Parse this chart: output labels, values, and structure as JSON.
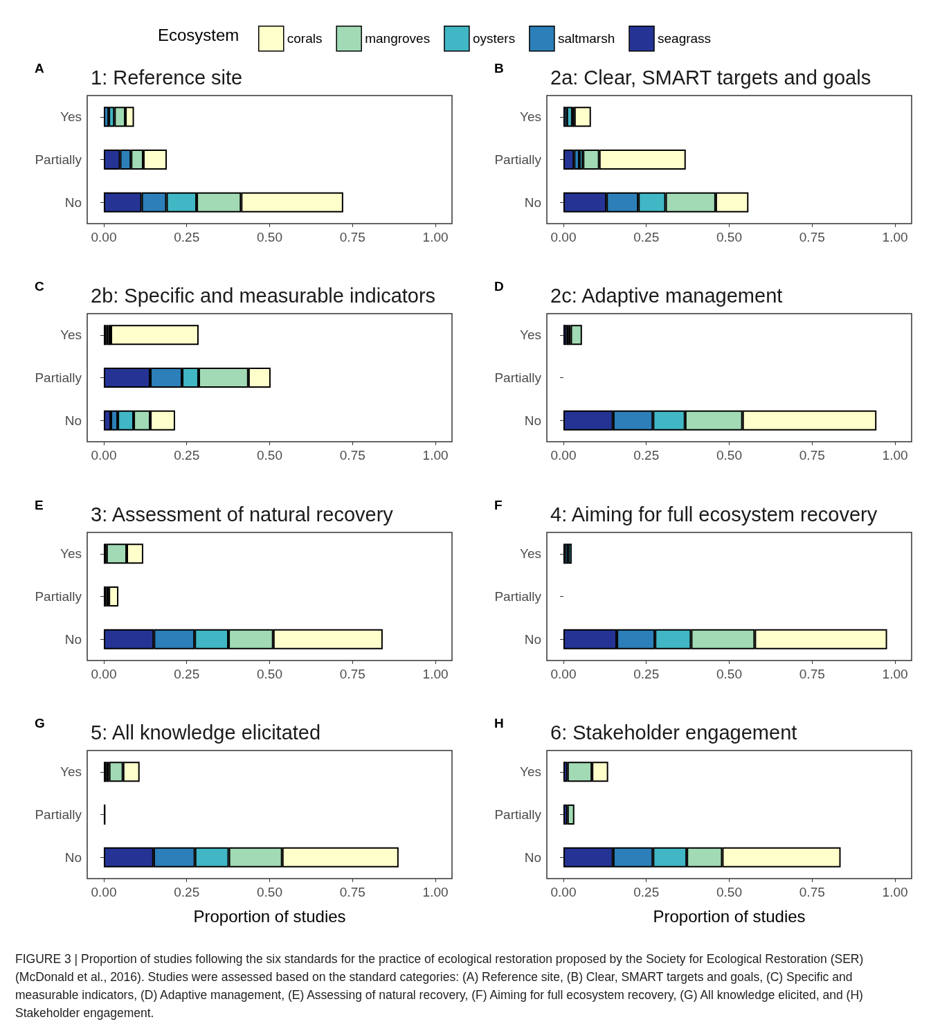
{
  "chart_data": [
    {
      "type": "bar",
      "orientation": "horizontal",
      "stacked": true,
      "title": "1: Reference site",
      "annotations": [
        "A"
      ],
      "legend": "top",
      "legend_title": "Ecosystem",
      "categories": [
        "Yes",
        "Partially",
        "No"
      ],
      "xlim": [
        -0.05,
        1.05
      ],
      "xticks": [
        {
          "value": 0,
          "label": "0.00"
        },
        {
          "value": 0.25,
          "label": "0.25"
        },
        {
          "value": 0.5,
          "label": "0.50"
        },
        {
          "value": 0.75,
          "label": "0.75"
        },
        {
          "value": 1,
          "label": "1.00"
        }
      ],
      "series": [
        {
          "name": "seagrass",
          "color": "#253494",
          "values": [
            null,
            0.049,
            0.114
          ]
        },
        {
          "name": "saltmarsh",
          "color": "#2c7fb8",
          "values": [
            0.015,
            0.033,
            0.075
          ]
        },
        {
          "name": "oysters",
          "color": "#41b6c4",
          "values": [
            0.017,
            null,
            0.091
          ]
        },
        {
          "name": "mangroves",
          "color": "#a1dab4",
          "values": [
            0.033,
            0.037,
            0.134
          ]
        },
        {
          "name": "corals",
          "color": "#ffffcc",
          "values": [
            0.026,
            0.071,
            0.308
          ]
        }
      ]
    },
    {
      "type": "bar",
      "orientation": "horizontal",
      "stacked": true,
      "title": "2a: Clear, SMART targets and goals",
      "annotations": [
        "B"
      ],
      "categories": [
        "Yes",
        "Partially",
        "No"
      ],
      "xlim": [
        -0.05,
        1.05
      ],
      "xticks": [
        {
          "value": 0,
          "label": "0.00"
        },
        {
          "value": 0.25,
          "label": "0.25"
        },
        {
          "value": 0.5,
          "label": "0.50"
        },
        {
          "value": 0.75,
          "label": "0.75"
        },
        {
          "value": 1,
          "label": "1.00"
        }
      ],
      "series": [
        {
          "color": "#253494",
          "values": [
            null,
            0.032,
            0.13
          ]
        },
        {
          "color": "#2c7fb8",
          "values": [
            0.01,
            0.016,
            0.096
          ]
        },
        {
          "color": "#41b6c4",
          "values": [
            0.017,
            0.011,
            0.082
          ]
        },
        {
          "color": "#a1dab4",
          "values": [
            0.006,
            0.049,
            0.151
          ]
        },
        {
          "color": "#ffffcc",
          "values": [
            0.05,
            0.261,
            0.099
          ]
        }
      ]
    },
    {
      "type": "bar",
      "orientation": "horizontal",
      "stacked": true,
      "title": "2b: Specific and measurable indicators",
      "annotations": [
        "C"
      ],
      "categories": [
        "Yes",
        "Partially",
        "No"
      ],
      "xlim": [
        -0.05,
        1.05
      ],
      "xticks": [
        {
          "value": 0,
          "label": "0.00"
        },
        {
          "value": 0.25,
          "label": "0.25"
        },
        {
          "value": 0.5,
          "label": "0.50"
        },
        {
          "value": 0.75,
          "label": "0.75"
        },
        {
          "value": 1,
          "label": "1.00"
        }
      ],
      "series": [
        {
          "color": "#253494",
          "values": [
            0.007,
            0.14,
            0.021
          ]
        },
        {
          "color": "#2c7fb8",
          "values": [
            null,
            0.096,
            0.021
          ]
        },
        {
          "color": "#41b6c4",
          "values": [
            0.007,
            0.05,
            0.048
          ]
        },
        {
          "color": "#a1dab4",
          "values": [
            0.007,
            0.15,
            0.05
          ]
        },
        {
          "color": "#ffffcc",
          "values": [
            0.265,
            0.067,
            0.075
          ]
        }
      ]
    },
    {
      "type": "bar",
      "orientation": "horizontal",
      "stacked": true,
      "title": "2c: Adaptive management",
      "annotations": [
        "D"
      ],
      "categories": [
        "Yes",
        "Partially",
        "No"
      ],
      "xlim": [
        -0.05,
        1.05
      ],
      "xticks": [
        {
          "value": 0,
          "label": "0.00"
        },
        {
          "value": 0.25,
          "label": "0.25"
        },
        {
          "value": 0.5,
          "label": "0.50"
        },
        {
          "value": 0.75,
          "label": "0.75"
        },
        {
          "value": 1,
          "label": "1.00"
        }
      ],
      "series": [
        {
          "color": "#253494",
          "values": [
            0.01,
            null,
            0.15
          ]
        },
        {
          "color": "#2c7fb8",
          "values": [
            0.005,
            null,
            0.12
          ]
        },
        {
          "color": "#41b6c4",
          "values": [
            0.007,
            null,
            0.097
          ]
        },
        {
          "color": "#a1dab4",
          "values": [
            0.034,
            null,
            0.173
          ]
        },
        {
          "color": "#ffffcc",
          "values": [
            null,
            null,
            0.404
          ]
        }
      ]
    },
    {
      "type": "bar",
      "orientation": "horizontal",
      "stacked": true,
      "title": "3: Assessment of natural recovery",
      "annotations": [
        "E"
      ],
      "categories": [
        "Yes",
        "Partially",
        "No"
      ],
      "xlim": [
        -0.05,
        1.05
      ],
      "xticks": [
        {
          "value": 0,
          "label": "0.00"
        },
        {
          "value": 0.25,
          "label": "0.25"
        },
        {
          "value": 0.5,
          "label": "0.50"
        },
        {
          "value": 0.75,
          "label": "0.75"
        },
        {
          "value": 1,
          "label": "1.00"
        }
      ],
      "series": [
        {
          "color": "#253494",
          "values": [
            0.008,
            0.007,
            0.151
          ]
        },
        {
          "color": "#2c7fb8",
          "values": [
            null,
            null,
            0.123
          ]
        },
        {
          "color": "#41b6c4",
          "values": [
            null,
            null,
            0.102
          ]
        },
        {
          "color": "#a1dab4",
          "values": [
            0.061,
            0.008,
            0.135
          ]
        },
        {
          "color": "#ffffcc",
          "values": [
            0.05,
            0.029,
            0.33
          ]
        }
      ]
    },
    {
      "type": "bar",
      "orientation": "horizontal",
      "stacked": true,
      "title": "4: Aiming for full ecosystem recovery",
      "annotations": [
        "F"
      ],
      "categories": [
        "Yes",
        "Partially",
        "No"
      ],
      "xlim": [
        -0.05,
        1.05
      ],
      "xticks": [
        {
          "value": 0,
          "label": "0.00"
        },
        {
          "value": 0.25,
          "label": "0.25"
        },
        {
          "value": 0.5,
          "label": "0.50"
        },
        {
          "value": 0.75,
          "label": "0.75"
        },
        {
          "value": 1,
          "label": "1.00"
        }
      ],
      "series": [
        {
          "color": "#253494",
          "values": [
            0.005,
            null,
            0.161
          ]
        },
        {
          "color": "#2c7fb8",
          "values": [
            0.01,
            null,
            0.115
          ]
        },
        {
          "color": "#41b6c4",
          "values": [
            0.01,
            null,
            0.109
          ]
        },
        {
          "color": "#a1dab4",
          "values": [
            null,
            null,
            0.192
          ]
        },
        {
          "color": "#ffffcc",
          "values": [
            null,
            null,
            0.399
          ]
        }
      ]
    },
    {
      "type": "bar",
      "orientation": "horizontal",
      "stacked": true,
      "title": "5: All knowledge elicitated",
      "annotations": [
        "G"
      ],
      "xlabel": "Proportion of studies",
      "categories": [
        "Yes",
        "Partially",
        "No"
      ],
      "xlim": [
        -0.05,
        1.05
      ],
      "xticks": [
        {
          "value": 0,
          "label": "0.00"
        },
        {
          "value": 0.25,
          "label": "0.25"
        },
        {
          "value": 0.5,
          "label": "0.50"
        },
        {
          "value": 0.75,
          "label": "0.75"
        },
        {
          "value": 1,
          "label": "1.00"
        }
      ],
      "series": [
        {
          "color": "#253494",
          "values": [
            0.008,
            0.005,
            0.15
          ]
        },
        {
          "color": "#2c7fb8",
          "values": [
            0.008,
            null,
            0.125
          ]
        },
        {
          "color": "#41b6c4",
          "values": [
            null,
            null,
            0.102
          ]
        },
        {
          "color": "#a1dab4",
          "values": [
            0.042,
            null,
            0.161
          ]
        },
        {
          "color": "#ffffcc",
          "values": [
            0.05,
            null,
            0.351
          ]
        }
      ]
    },
    {
      "type": "bar",
      "orientation": "horizontal",
      "stacked": true,
      "title": "6: Stakeholder engagement",
      "annotations": [
        "H",
        "FIGURE 3 | Proportion of studies following the six standards for the practice of ecological restoration proposed by the Society for Ecological Restoration (SER) (McDonald et al., 2016). Studies were assessed based on the standard categories: (A) Reference site, (B) Clear, SMART targets and goals, (C) Specific and measurable indicators, (D) Adaptive management, (E) Assessing of natural recovery, (F) Aiming for full ecosystem recovery, (G) All knowledge elicited, and (H) Stakeholder engagement."
      ],
      "xlabel": "Proportion of studies",
      "categories": [
        "Yes",
        "Partially",
        "No"
      ],
      "xlim": [
        -0.05,
        1.05
      ],
      "xticks": [
        {
          "value": 0,
          "label": "0.00"
        },
        {
          "value": 0.25,
          "label": "0.25"
        },
        {
          "value": 0.5,
          "label": "0.50"
        },
        {
          "value": 0.75,
          "label": "0.75"
        },
        {
          "value": 1,
          "label": "1.00"
        }
      ],
      "series": [
        {
          "color": "#253494",
          "values": [
            0.012,
            0.012,
            0.15
          ]
        },
        {
          "color": "#2c7fb8",
          "values": [
            null,
            null,
            0.12
          ]
        },
        {
          "color": "#41b6c4",
          "values": [
            null,
            null,
            0.102
          ]
        },
        {
          "color": "#a1dab4",
          "values": [
            0.074,
            0.021,
            0.107
          ]
        },
        {
          "color": "#ffffcc",
          "values": [
            0.049,
            null,
            0.357
          ]
        }
      ]
    }
  ]
}
